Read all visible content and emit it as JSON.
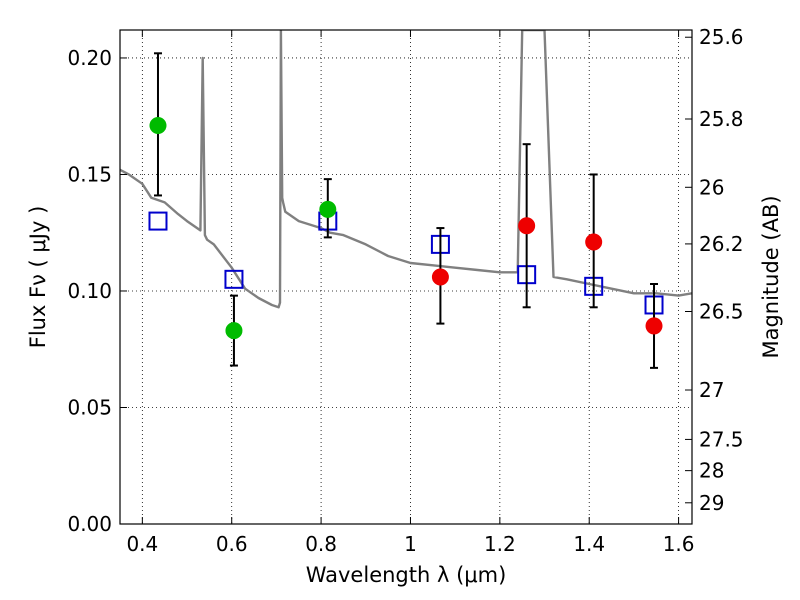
{
  "chart_data": {
    "type": "scatter",
    "xlabel": "Wavelength  λ (μm)",
    "ylabel": "Flux  Fν  ( μJy )",
    "y2label": "Magnitude (AB)",
    "xlim": [
      0.35,
      1.63
    ],
    "ylim": [
      0.0,
      0.212
    ],
    "grid": true,
    "x_ticks": [
      0.4,
      0.6,
      0.8,
      1.0,
      1.2,
      1.4,
      1.6
    ],
    "x_tick_labels": [
      "0.4",
      "0.6",
      "0.8",
      "1",
      "1.2",
      "1.4",
      "1.6"
    ],
    "y_ticks": [
      0.0,
      0.05,
      0.1,
      0.15,
      0.2
    ],
    "y_tick_labels": [
      "0.00",
      "0.05",
      "0.10",
      "0.15",
      "0.20"
    ],
    "y2_ticks": [
      {
        "label": "25.6",
        "flux": 0.2089
      },
      {
        "label": "25.8",
        "flux": 0.1738
      },
      {
        "label": "26",
        "flux": 0.1445
      },
      {
        "label": "26.2",
        "flux": 0.1202
      },
      {
        "label": "26.5",
        "flux": 0.0912
      },
      {
        "label": "27",
        "flux": 0.0575
      },
      {
        "label": "27.5",
        "flux": 0.0363
      },
      {
        "label": "28",
        "flux": 0.0229
      },
      {
        "label": "29",
        "flux": 0.0091
      }
    ],
    "series": [
      {
        "name": "model-spectrum",
        "kind": "line",
        "color": "#808080",
        "x": [
          0.35,
          0.37,
          0.4,
          0.42,
          0.45,
          0.48,
          0.5,
          0.53,
          0.535,
          0.54,
          0.545,
          0.56,
          0.6,
          0.63,
          0.66,
          0.69,
          0.705,
          0.708,
          0.71,
          0.713,
          0.715,
          0.72,
          0.75,
          0.8,
          0.82,
          0.85,
          0.9,
          0.95,
          1.0,
          1.05,
          1.1,
          1.15,
          1.2,
          1.24,
          1.25,
          1.27,
          1.3,
          1.32,
          1.35,
          1.4,
          1.45,
          1.5,
          1.55,
          1.6,
          1.63
        ],
        "y": [
          0.152,
          0.15,
          0.146,
          0.14,
          0.138,
          0.133,
          0.13,
          0.126,
          0.2,
          0.124,
          0.122,
          0.12,
          0.11,
          0.101,
          0.097,
          0.094,
          0.093,
          0.095,
          0.212,
          0.14,
          0.138,
          0.134,
          0.13,
          0.127,
          0.125,
          0.124,
          0.12,
          0.115,
          0.112,
          0.111,
          0.11,
          0.109,
          0.108,
          0.108,
          0.212,
          0.212,
          0.212,
          0.106,
          0.105,
          0.103,
          0.101,
          0.099,
          0.099,
          0.098,
          0.099
        ]
      },
      {
        "name": "model-photometry",
        "kind": "open-square",
        "color": "#0000cc",
        "x": [
          0.435,
          0.605,
          0.815,
          1.067,
          1.26,
          1.41,
          1.545
        ],
        "y": [
          0.13,
          0.105,
          0.13,
          0.12,
          0.107,
          0.102,
          0.094
        ]
      },
      {
        "name": "observed-optical",
        "kind": "filled-circle",
        "color": "#00bb00",
        "x": [
          0.435,
          0.605,
          0.815
        ],
        "y": [
          0.171,
          0.083,
          0.135
        ],
        "err_low": [
          0.141,
          0.068,
          0.123
        ],
        "err_high": [
          0.202,
          0.098,
          0.148
        ]
      },
      {
        "name": "observed-infrared",
        "kind": "filled-circle",
        "color": "#ee0000",
        "x": [
          1.067,
          1.26,
          1.41,
          1.545
        ],
        "y": [
          0.106,
          0.128,
          0.121,
          0.085
        ],
        "err_low": [
          0.086,
          0.093,
          0.093,
          0.067
        ],
        "err_high": [
          0.127,
          0.163,
          0.15,
          0.103
        ]
      }
    ]
  }
}
